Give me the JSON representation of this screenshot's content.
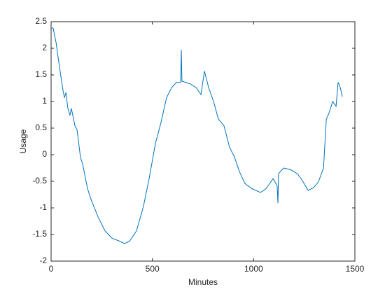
{
  "chart_data": {
    "type": "line",
    "xlabel": "Minutes",
    "ylabel": "Usage",
    "xlim": [
      0,
      1500
    ],
    "ylim": [
      -2,
      2.5
    ],
    "xticks": [
      0,
      500,
      1000,
      1500
    ],
    "yticks": [
      -2,
      -1.5,
      -1,
      -0.5,
      0,
      0.5,
      1,
      1.5,
      2,
      2.5
    ],
    "series": [
      {
        "color": "#0072bd",
        "x": [
          0,
          10,
          24,
          41,
          59,
          66,
          73,
          83,
          93,
          100,
          118,
          128,
          145,
          156,
          180,
          197,
          232,
          266,
          301,
          335,
          363,
          387,
          422,
          456,
          484,
          515,
          543,
          570,
          595,
          619,
          640,
          643,
          646,
          664,
          688,
          716,
          740,
          750,
          757,
          778,
          802,
          826,
          854,
          881,
          906,
          930,
          957,
          992,
          1034,
          1061,
          1096,
          1116,
          1120,
          1123,
          1148,
          1182,
          1217,
          1241,
          1269,
          1296,
          1320,
          1345,
          1359,
          1372,
          1390,
          1407,
          1417,
          1428,
          1438
        ],
        "values": [
          2.38,
          2.38,
          2.12,
          1.66,
          1.2,
          1.07,
          1.17,
          0.87,
          0.74,
          0.87,
          0.54,
          0.47,
          -0.05,
          -0.18,
          -0.64,
          -0.84,
          -1.17,
          -1.43,
          -1.57,
          -1.62,
          -1.67,
          -1.63,
          -1.43,
          -0.97,
          -0.45,
          0.21,
          0.61,
          1.07,
          1.26,
          1.36,
          1.36,
          1.97,
          1.38,
          1.36,
          1.33,
          1.26,
          1.13,
          1.39,
          1.57,
          1.26,
          1.0,
          0.67,
          0.54,
          0.14,
          -0.05,
          -0.32,
          -0.54,
          -0.64,
          -0.71,
          -0.64,
          -0.45,
          -0.58,
          -0.91,
          -0.36,
          -0.25,
          -0.28,
          -0.36,
          -0.49,
          -0.67,
          -0.62,
          -0.51,
          -0.25,
          0.67,
          0.78,
          1.0,
          0.91,
          1.36,
          1.26,
          1.09
        ]
      }
    ]
  }
}
